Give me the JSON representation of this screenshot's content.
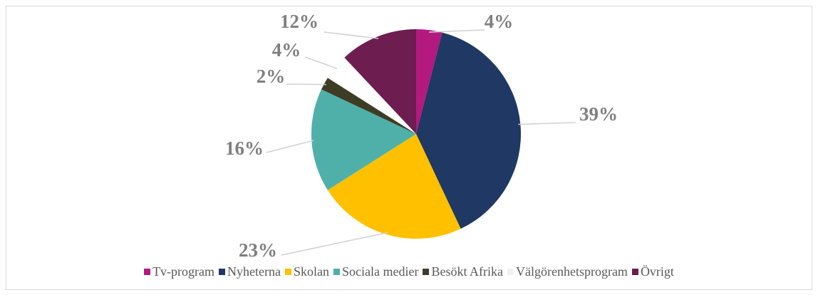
{
  "chart_data": {
    "type": "pie",
    "categories": [
      "Tv-program",
      "Nyheterna",
      "Skolan",
      "Sociala medier",
      "Besökt Afrika",
      "Välgörenhetsprogram",
      "Övrigt"
    ],
    "values": [
      4,
      39,
      23,
      16,
      2,
      4,
      12
    ],
    "value_labels": [
      "4%",
      "39%",
      "23%",
      "16%",
      "2%",
      "4%",
      "12%"
    ],
    "colors": [
      "#b4197f",
      "#1f3864",
      "#ffc000",
      "#4fb0aa",
      "#3d3d26",
      "#ffffff",
      "#6d1d50"
    ]
  }
}
